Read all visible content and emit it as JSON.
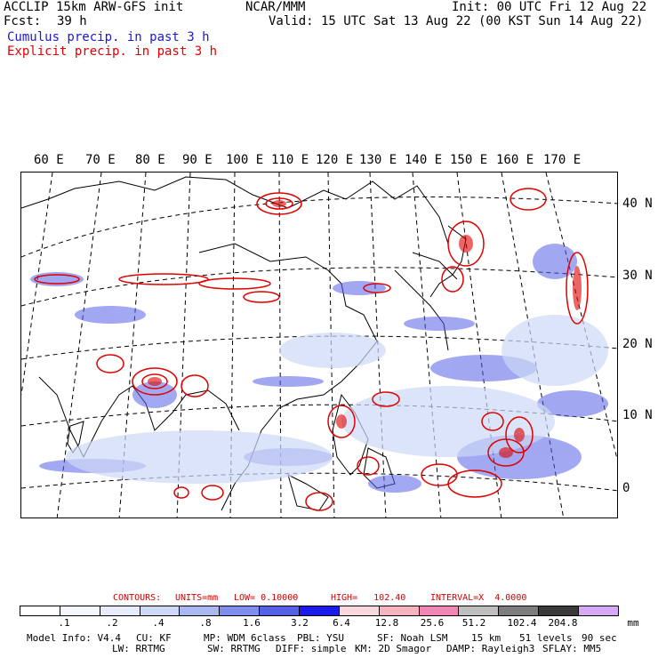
{
  "header": {
    "model_line": "ACCLIP 15km ARW-GFS init",
    "fcst_label": "Fcst:",
    "fcst_value": "39 h",
    "center_label": "NCAR/MMM",
    "init_line": "Init: 00 UTC Fri 12 Aug 22",
    "valid_line": "Valid: 15 UTC Sat 13 Aug 22 (00 KST Sun 14 Aug 22)",
    "cumulus_legend": "Cumulus precip. in past 3 h",
    "explicit_legend": "Explicit precip. in past 3 h",
    "cumulus_color": "#1a1acc",
    "explicit_color": "#e00000"
  },
  "map": {
    "lon_labels": [
      "60 E",
      "70 E",
      "80 E",
      "90 E",
      "100 E",
      "110 E",
      "120 E",
      "130 E",
      "140 E",
      "150 E",
      "160 E",
      "170 E"
    ],
    "lat_labels": [
      "40 N",
      "30 N",
      "20 N",
      "10 N",
      "0"
    ]
  },
  "contour_info": {
    "contours": "CONTOURS:",
    "units": "UNITS=mm",
    "low": "LOW= 0.10000",
    "high": "HIGH=   102.40",
    "interval": "INTERVAL=X  4.0000"
  },
  "colorbar": {
    "colors": [
      "#ffffff",
      "#f4f7fd",
      "#e6ecfb",
      "#cdd9f7",
      "#aab8f2",
      "#7f8eec",
      "#5561e5",
      "#1a1aeb",
      "#f8d8dc",
      "#f6b2bd",
      "#ef86b4",
      "#bebebe",
      "#7d7d7d",
      "#3a3a3a",
      "#d7a8f5"
    ],
    "ticks": [
      ".1",
      ".2",
      ".4",
      ".8",
      "1.6",
      "3.2",
      "6.4",
      "12.8",
      "25.6",
      "51.2",
      "102.4",
      "204.8"
    ],
    "unit": "mm"
  },
  "footer": {
    "line1": [
      "Model Info: V4.4",
      "CU: KF",
      "MP: WDM 6class",
      "PBL: YSU",
      "SF: Noah LSM",
      "15 km",
      "51 levels",
      "90 sec"
    ],
    "line2": [
      "LW: RRTMG",
      "SW: RRTMG",
      "DIFF: simple",
      "KM: 2D Smagor",
      "DAMP: Rayleigh3",
      "SFLAY: MM5"
    ]
  }
}
